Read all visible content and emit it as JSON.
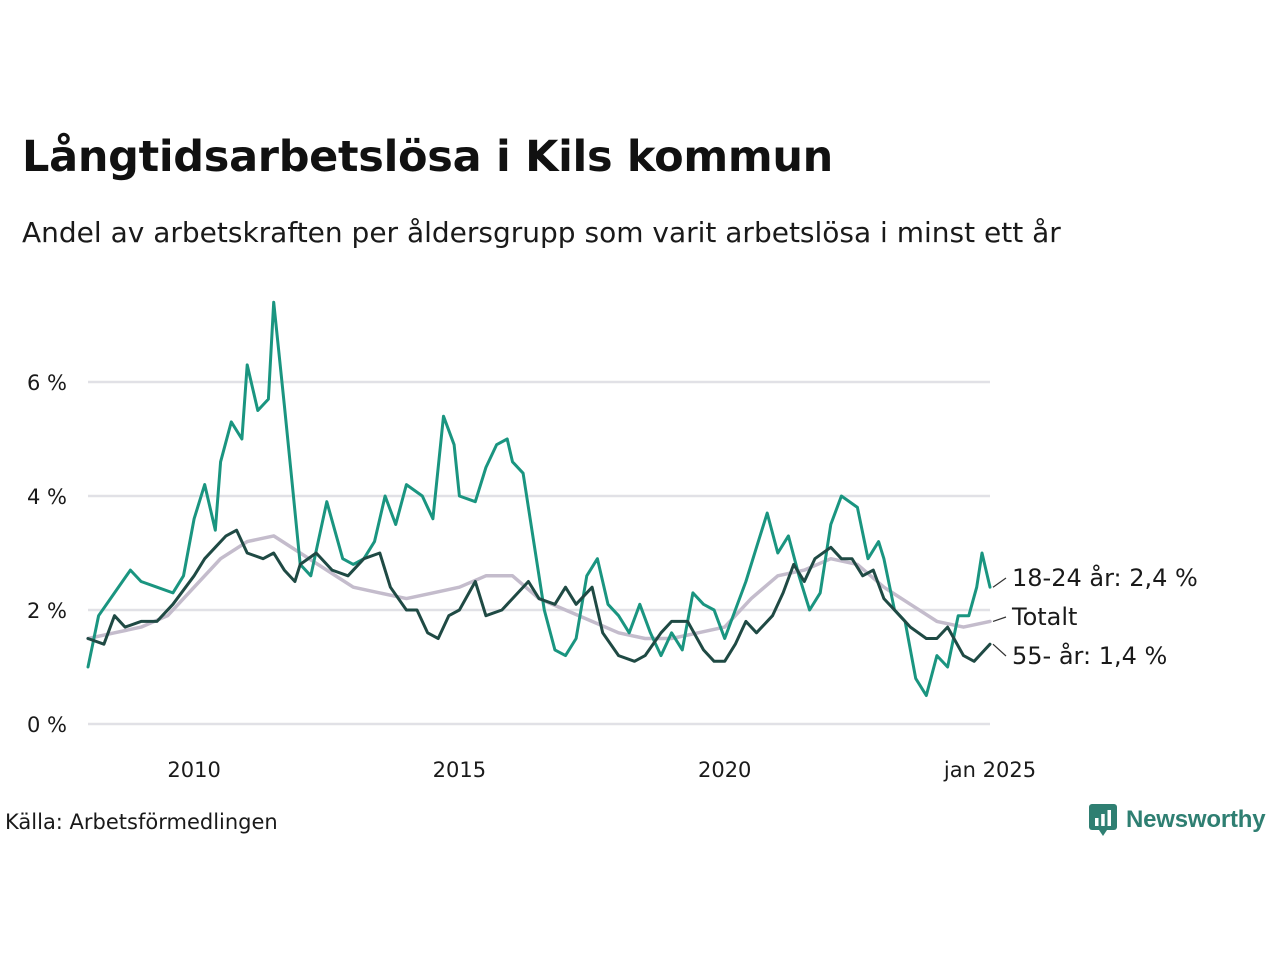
{
  "title": "Långtidsarbetslösa i Kils kommun",
  "subtitle": "Andel av arbetskraften per åldersgrupp som varit arbetslösa i minst ett år",
  "source": "Källa: Arbetsförmedlingen",
  "brand": {
    "name": "Newsworthy",
    "icon": "bar-chart-bubble-icon",
    "color": "#2f7f72"
  },
  "chart_data": {
    "type": "line",
    "xlim": [
      2008.0,
      2025.0
    ],
    "ylim": [
      0,
      7.6
    ],
    "yticks": [
      {
        "value": 0,
        "label": "0 %"
      },
      {
        "value": 2,
        "label": "2 %"
      },
      {
        "value": 4,
        "label": "4 %"
      },
      {
        "value": 6,
        "label": "6 %"
      }
    ],
    "xticks": [
      {
        "value": 2010,
        "label": "2010"
      },
      {
        "value": 2015,
        "label": "2015"
      },
      {
        "value": 2020,
        "label": "2020"
      },
      {
        "value": 2025,
        "label": "jan 2025"
      }
    ],
    "grid": true,
    "series": [
      {
        "name": "Totalt",
        "label": "Totalt",
        "color": "#c4bccc",
        "points": [
          [
            2008.0,
            1.5
          ],
          [
            2008.5,
            1.6
          ],
          [
            2009.0,
            1.7
          ],
          [
            2009.5,
            1.9
          ],
          [
            2010.0,
            2.4
          ],
          [
            2010.5,
            2.9
          ],
          [
            2011.0,
            3.2
          ],
          [
            2011.5,
            3.3
          ],
          [
            2012.0,
            3.0
          ],
          [
            2012.5,
            2.7
          ],
          [
            2013.0,
            2.4
          ],
          [
            2013.5,
            2.3
          ],
          [
            2014.0,
            2.2
          ],
          [
            2014.5,
            2.3
          ],
          [
            2015.0,
            2.4
          ],
          [
            2015.5,
            2.6
          ],
          [
            2016.0,
            2.6
          ],
          [
            2016.5,
            2.2
          ],
          [
            2017.0,
            2.0
          ],
          [
            2017.5,
            1.8
          ],
          [
            2018.0,
            1.6
          ],
          [
            2018.5,
            1.5
          ],
          [
            2019.0,
            1.5
          ],
          [
            2019.5,
            1.6
          ],
          [
            2020.0,
            1.7
          ],
          [
            2020.5,
            2.2
          ],
          [
            2021.0,
            2.6
          ],
          [
            2021.5,
            2.7
          ],
          [
            2022.0,
            2.9
          ],
          [
            2022.5,
            2.8
          ],
          [
            2023.0,
            2.4
          ],
          [
            2023.5,
            2.1
          ],
          [
            2024.0,
            1.8
          ],
          [
            2024.5,
            1.7
          ],
          [
            2025.0,
            1.8
          ]
        ]
      },
      {
        "name": "18-24 år",
        "label": "18-24 år: 2,4 %",
        "color": "#1a9580",
        "points": [
          [
            2008.0,
            1.0
          ],
          [
            2008.2,
            1.9
          ],
          [
            2008.5,
            2.3
          ],
          [
            2008.8,
            2.7
          ],
          [
            2009.0,
            2.5
          ],
          [
            2009.3,
            2.4
          ],
          [
            2009.6,
            2.3
          ],
          [
            2009.8,
            2.6
          ],
          [
            2010.0,
            3.6
          ],
          [
            2010.2,
            4.2
          ],
          [
            2010.4,
            3.4
          ],
          [
            2010.5,
            4.6
          ],
          [
            2010.7,
            5.3
          ],
          [
            2010.9,
            5.0
          ],
          [
            2011.0,
            6.3
          ],
          [
            2011.2,
            5.5
          ],
          [
            2011.4,
            5.7
          ],
          [
            2011.5,
            7.4
          ],
          [
            2011.7,
            5.6
          ],
          [
            2011.85,
            4.2
          ],
          [
            2012.0,
            2.8
          ],
          [
            2012.2,
            2.6
          ],
          [
            2012.5,
            3.9
          ],
          [
            2012.8,
            2.9
          ],
          [
            2013.0,
            2.8
          ],
          [
            2013.2,
            2.9
          ],
          [
            2013.4,
            3.2
          ],
          [
            2013.6,
            4.0
          ],
          [
            2013.8,
            3.5
          ],
          [
            2014.0,
            4.2
          ],
          [
            2014.3,
            4.0
          ],
          [
            2014.5,
            3.6
          ],
          [
            2014.7,
            5.4
          ],
          [
            2014.9,
            4.9
          ],
          [
            2015.0,
            4.0
          ],
          [
            2015.3,
            3.9
          ],
          [
            2015.5,
            4.5
          ],
          [
            2015.7,
            4.9
          ],
          [
            2015.9,
            5.0
          ],
          [
            2016.0,
            4.6
          ],
          [
            2016.2,
            4.4
          ],
          [
            2016.4,
            3.2
          ],
          [
            2016.6,
            2.0
          ],
          [
            2016.8,
            1.3
          ],
          [
            2017.0,
            1.2
          ],
          [
            2017.2,
            1.5
          ],
          [
            2017.4,
            2.6
          ],
          [
            2017.6,
            2.9
          ],
          [
            2017.8,
            2.1
          ],
          [
            2018.0,
            1.9
          ],
          [
            2018.2,
            1.6
          ],
          [
            2018.4,
            2.1
          ],
          [
            2018.6,
            1.6
          ],
          [
            2018.8,
            1.2
          ],
          [
            2019.0,
            1.6
          ],
          [
            2019.2,
            1.3
          ],
          [
            2019.4,
            2.3
          ],
          [
            2019.6,
            2.1
          ],
          [
            2019.8,
            2.0
          ],
          [
            2020.0,
            1.5
          ],
          [
            2020.2,
            2.0
          ],
          [
            2020.4,
            2.5
          ],
          [
            2020.6,
            3.1
          ],
          [
            2020.8,
            3.7
          ],
          [
            2021.0,
            3.0
          ],
          [
            2021.2,
            3.3
          ],
          [
            2021.4,
            2.6
          ],
          [
            2021.6,
            2.0
          ],
          [
            2021.8,
            2.3
          ],
          [
            2022.0,
            3.5
          ],
          [
            2022.2,
            4.0
          ],
          [
            2022.5,
            3.8
          ],
          [
            2022.7,
            2.9
          ],
          [
            2022.9,
            3.2
          ],
          [
            2023.0,
            2.9
          ],
          [
            2023.2,
            2.0
          ],
          [
            2023.4,
            1.8
          ],
          [
            2023.6,
            0.8
          ],
          [
            2023.8,
            0.5
          ],
          [
            2024.0,
            1.2
          ],
          [
            2024.2,
            1.0
          ],
          [
            2024.4,
            1.9
          ],
          [
            2024.6,
            1.9
          ],
          [
            2024.75,
            2.4
          ],
          [
            2024.85,
            3.0
          ],
          [
            2025.0,
            2.4
          ]
        ]
      },
      {
        "name": "55- år",
        "label": "55- år: 1,4 %",
        "color": "#1f4a44",
        "points": [
          [
            2008.0,
            1.5
          ],
          [
            2008.3,
            1.4
          ],
          [
            2008.5,
            1.9
          ],
          [
            2008.7,
            1.7
          ],
          [
            2009.0,
            1.8
          ],
          [
            2009.3,
            1.8
          ],
          [
            2009.6,
            2.1
          ],
          [
            2010.0,
            2.6
          ],
          [
            2010.2,
            2.9
          ],
          [
            2010.4,
            3.1
          ],
          [
            2010.6,
            3.3
          ],
          [
            2010.8,
            3.4
          ],
          [
            2011.0,
            3.0
          ],
          [
            2011.3,
            2.9
          ],
          [
            2011.5,
            3.0
          ],
          [
            2011.7,
            2.7
          ],
          [
            2011.9,
            2.5
          ],
          [
            2012.0,
            2.8
          ],
          [
            2012.3,
            3.0
          ],
          [
            2012.6,
            2.7
          ],
          [
            2012.9,
            2.6
          ],
          [
            2013.2,
            2.9
          ],
          [
            2013.5,
            3.0
          ],
          [
            2013.7,
            2.4
          ],
          [
            2014.0,
            2.0
          ],
          [
            2014.2,
            2.0
          ],
          [
            2014.4,
            1.6
          ],
          [
            2014.6,
            1.5
          ],
          [
            2014.8,
            1.9
          ],
          [
            2015.0,
            2.0
          ],
          [
            2015.3,
            2.5
          ],
          [
            2015.5,
            1.9
          ],
          [
            2015.8,
            2.0
          ],
          [
            2016.0,
            2.2
          ],
          [
            2016.3,
            2.5
          ],
          [
            2016.5,
            2.2
          ],
          [
            2016.8,
            2.1
          ],
          [
            2017.0,
            2.4
          ],
          [
            2017.2,
            2.1
          ],
          [
            2017.5,
            2.4
          ],
          [
            2017.7,
            1.6
          ],
          [
            2018.0,
            1.2
          ],
          [
            2018.3,
            1.1
          ],
          [
            2018.5,
            1.2
          ],
          [
            2018.8,
            1.6
          ],
          [
            2019.0,
            1.8
          ],
          [
            2019.3,
            1.8
          ],
          [
            2019.6,
            1.3
          ],
          [
            2019.8,
            1.1
          ],
          [
            2020.0,
            1.1
          ],
          [
            2020.2,
            1.4
          ],
          [
            2020.4,
            1.8
          ],
          [
            2020.6,
            1.6
          ],
          [
            2020.9,
            1.9
          ],
          [
            2021.1,
            2.3
          ],
          [
            2021.3,
            2.8
          ],
          [
            2021.5,
            2.5
          ],
          [
            2021.7,
            2.9
          ],
          [
            2022.0,
            3.1
          ],
          [
            2022.2,
            2.9
          ],
          [
            2022.4,
            2.9
          ],
          [
            2022.6,
            2.6
          ],
          [
            2022.8,
            2.7
          ],
          [
            2023.0,
            2.2
          ],
          [
            2023.3,
            1.9
          ],
          [
            2023.5,
            1.7
          ],
          [
            2023.8,
            1.5
          ],
          [
            2024.0,
            1.5
          ],
          [
            2024.2,
            1.7
          ],
          [
            2024.5,
            1.2
          ],
          [
            2024.7,
            1.1
          ],
          [
            2024.9,
            1.3
          ],
          [
            2025.0,
            1.4
          ]
        ]
      }
    ]
  }
}
